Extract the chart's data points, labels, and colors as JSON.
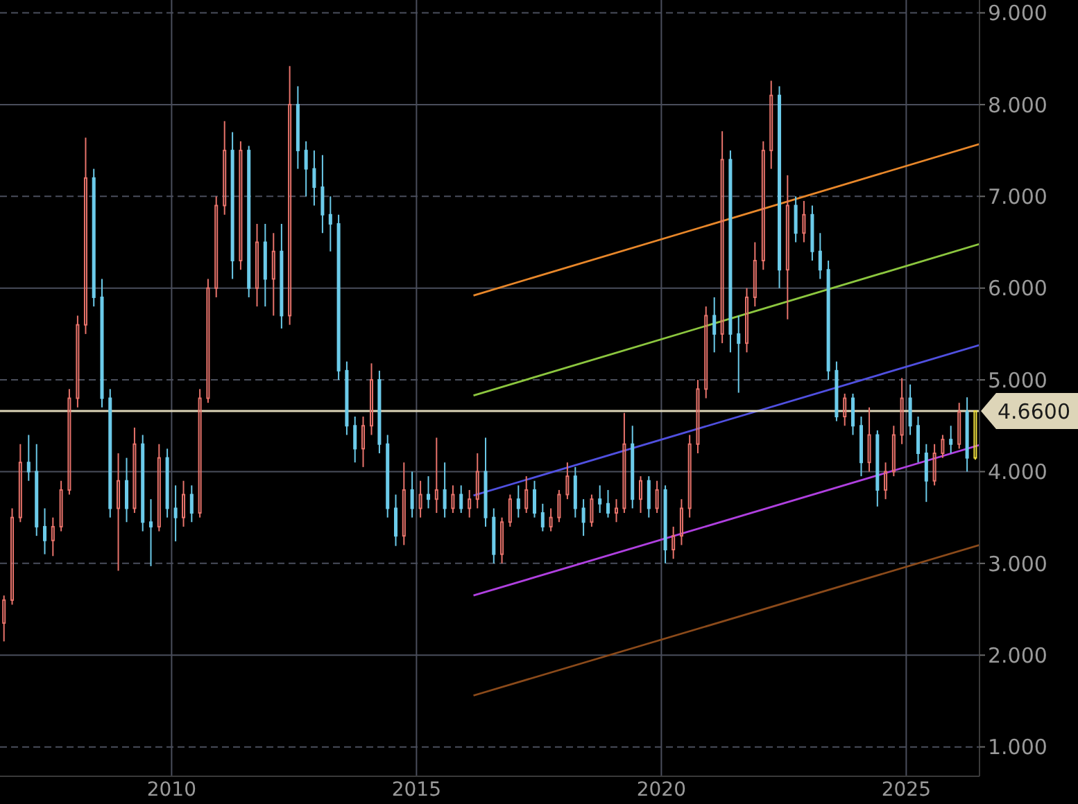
{
  "chart_data": {
    "type": "candlestick",
    "x": [
      "2006-08",
      "2006-10",
      "2006-12",
      "2007-02",
      "2007-04",
      "2007-06",
      "2007-08",
      "2007-10",
      "2007-12",
      "2008-02",
      "2008-04",
      "2008-06",
      "2008-08",
      "2008-10",
      "2008-12",
      "2009-02",
      "2009-04",
      "2009-06",
      "2009-08",
      "2009-10",
      "2009-12",
      "2010-02",
      "2010-04",
      "2010-06",
      "2010-08",
      "2010-10",
      "2010-12",
      "2011-02",
      "2011-04",
      "2011-06",
      "2011-08",
      "2011-10",
      "2011-12",
      "2012-02",
      "2012-04",
      "2012-06",
      "2012-08",
      "2012-10",
      "2012-12",
      "2013-02",
      "2013-04",
      "2013-06",
      "2013-08",
      "2013-10",
      "2013-12",
      "2014-02",
      "2014-04",
      "2014-06",
      "2014-08",
      "2014-10",
      "2014-12",
      "2015-02",
      "2015-04",
      "2015-06",
      "2015-08",
      "2015-10",
      "2015-12",
      "2016-02",
      "2016-04",
      "2016-06",
      "2016-08",
      "2016-10",
      "2016-12",
      "2017-02",
      "2017-04",
      "2017-06",
      "2017-08",
      "2017-10",
      "2017-12",
      "2018-02",
      "2018-04",
      "2018-06",
      "2018-08",
      "2018-10",
      "2018-12",
      "2019-02",
      "2019-04",
      "2019-06",
      "2019-08",
      "2019-10",
      "2019-12",
      "2020-02",
      "2020-04",
      "2020-06",
      "2020-08",
      "2020-10",
      "2020-12",
      "2021-02",
      "2021-04",
      "2021-06",
      "2021-08",
      "2021-10",
      "2021-12",
      "2022-02",
      "2022-04",
      "2022-06",
      "2022-08",
      "2022-10",
      "2022-12",
      "2023-02",
      "2023-04",
      "2023-06",
      "2023-08",
      "2023-10",
      "2023-12",
      "2024-02",
      "2024-04",
      "2024-06",
      "2024-08",
      "2024-10",
      "2024-12",
      "2025-02",
      "2025-04",
      "2025-06",
      "2025-08",
      "2025-10",
      "2025-12",
      "2026-02",
      "2026-04",
      "2026-06"
    ],
    "ohlc": [
      [
        2.35,
        2.65,
        2.15,
        2.6
      ],
      [
        2.6,
        3.6,
        2.55,
        3.5
      ],
      [
        3.5,
        4.3,
        3.45,
        4.1
      ],
      [
        4.1,
        4.4,
        3.9,
        4.0
      ],
      [
        4.0,
        4.3,
        3.3,
        3.4
      ],
      [
        3.4,
        3.6,
        3.1,
        3.25
      ],
      [
        3.25,
        3.5,
        3.08,
        3.4
      ],
      [
        3.4,
        3.9,
        3.35,
        3.8
      ],
      [
        3.8,
        4.9,
        3.75,
        4.8
      ],
      [
        4.8,
        5.7,
        4.7,
        5.6
      ],
      [
        5.6,
        7.64,
        5.5,
        7.2
      ],
      [
        7.2,
        7.3,
        5.8,
        5.9
      ],
      [
        5.9,
        6.1,
        4.7,
        4.8
      ],
      [
        4.8,
        4.9,
        3.5,
        3.6
      ],
      [
        3.6,
        4.2,
        2.92,
        3.9
      ],
      [
        3.9,
        4.15,
        3.45,
        3.6
      ],
      [
        3.6,
        4.48,
        3.55,
        4.3
      ],
      [
        4.3,
        4.4,
        3.35,
        3.45
      ],
      [
        3.45,
        3.7,
        2.97,
        3.4
      ],
      [
        3.4,
        4.3,
        3.35,
        4.15
      ],
      [
        4.15,
        4.25,
        3.5,
        3.6
      ],
      [
        3.6,
        3.85,
        3.24,
        3.5
      ],
      [
        3.5,
        3.9,
        3.4,
        3.75
      ],
      [
        3.75,
        3.85,
        3.45,
        3.55
      ],
      [
        3.55,
        4.9,
        3.5,
        4.8
      ],
      [
        4.8,
        6.1,
        4.75,
        6.0
      ],
      [
        6.0,
        7.0,
        5.9,
        6.9
      ],
      [
        6.9,
        7.82,
        6.8,
        7.5
      ],
      [
        7.5,
        7.7,
        6.1,
        6.3
      ],
      [
        6.3,
        7.6,
        6.2,
        7.5
      ],
      [
        7.5,
        7.55,
        5.9,
        6.0
      ],
      [
        6.0,
        6.7,
        5.8,
        6.5
      ],
      [
        6.5,
        6.7,
        5.8,
        6.1
      ],
      [
        6.1,
        6.6,
        5.7,
        6.4
      ],
      [
        6.4,
        6.7,
        5.56,
        5.7
      ],
      [
        5.7,
        8.42,
        5.6,
        8.0
      ],
      [
        8.0,
        8.2,
        7.3,
        7.5
      ],
      [
        7.5,
        7.6,
        7.0,
        7.3
      ],
      [
        7.3,
        7.5,
        6.9,
        7.1
      ],
      [
        7.1,
        7.45,
        6.6,
        6.8
      ],
      [
        6.8,
        7.0,
        6.4,
        6.7
      ],
      [
        6.7,
        6.8,
        5.0,
        5.1
      ],
      [
        5.1,
        5.2,
        4.4,
        4.5
      ],
      [
        4.5,
        4.6,
        4.1,
        4.25
      ],
      [
        4.25,
        4.6,
        4.05,
        4.5
      ],
      [
        4.5,
        5.18,
        4.4,
        5.0
      ],
      [
        5.0,
        5.1,
        4.2,
        4.3
      ],
      [
        4.3,
        4.4,
        3.5,
        3.6
      ],
      [
        3.6,
        3.75,
        3.19,
        3.3
      ],
      [
        3.3,
        4.1,
        3.2,
        3.8
      ],
      [
        3.8,
        4.0,
        3.5,
        3.6
      ],
      [
        3.6,
        3.9,
        3.5,
        3.75
      ],
      [
        3.75,
        3.95,
        3.6,
        3.7
      ],
      [
        3.7,
        4.37,
        3.55,
        3.8
      ],
      [
        3.8,
        4.1,
        3.5,
        3.6
      ],
      [
        3.6,
        3.85,
        3.55,
        3.75
      ],
      [
        3.75,
        3.85,
        3.55,
        3.6
      ],
      [
        3.6,
        3.8,
        3.5,
        3.7
      ],
      [
        3.7,
        4.2,
        3.6,
        4.0
      ],
      [
        4.0,
        4.37,
        3.4,
        3.5
      ],
      [
        3.5,
        3.6,
        3.0,
        3.1
      ],
      [
        3.1,
        3.5,
        3.0,
        3.45
      ],
      [
        3.45,
        3.75,
        3.4,
        3.7
      ],
      [
        3.7,
        3.85,
        3.5,
        3.6
      ],
      [
        3.6,
        3.95,
        3.55,
        3.8
      ],
      [
        3.8,
        3.9,
        3.5,
        3.55
      ],
      [
        3.55,
        3.65,
        3.35,
        3.4
      ],
      [
        3.4,
        3.6,
        3.35,
        3.5
      ],
      [
        3.5,
        3.8,
        3.45,
        3.75
      ],
      [
        3.75,
        4.1,
        3.7,
        3.95
      ],
      [
        3.95,
        4.05,
        3.5,
        3.6
      ],
      [
        3.6,
        3.7,
        3.3,
        3.45
      ],
      [
        3.45,
        3.75,
        3.4,
        3.7
      ],
      [
        3.7,
        3.85,
        3.55,
        3.65
      ],
      [
        3.65,
        3.8,
        3.5,
        3.55
      ],
      [
        3.55,
        3.7,
        3.45,
        3.6
      ],
      [
        3.6,
        4.64,
        3.55,
        4.3
      ],
      [
        4.3,
        4.5,
        3.6,
        3.7
      ],
      [
        3.7,
        3.95,
        3.55,
        3.9
      ],
      [
        3.9,
        3.95,
        3.5,
        3.6
      ],
      [
        3.6,
        3.9,
        3.55,
        3.8
      ],
      [
        3.8,
        3.85,
        3.0,
        3.15
      ],
      [
        3.15,
        3.4,
        3.05,
        3.3
      ],
      [
        3.3,
        3.7,
        3.2,
        3.6
      ],
      [
        3.6,
        4.4,
        3.5,
        4.3
      ],
      [
        4.3,
        5.0,
        4.2,
        4.9
      ],
      [
        4.9,
        5.8,
        4.8,
        5.7
      ],
      [
        5.7,
        5.9,
        5.3,
        5.5
      ],
      [
        5.5,
        7.71,
        5.4,
        7.4
      ],
      [
        7.4,
        7.5,
        5.3,
        5.5
      ],
      [
        5.5,
        5.7,
        4.86,
        5.4
      ],
      [
        5.4,
        6.0,
        5.3,
        5.9
      ],
      [
        5.9,
        6.5,
        5.8,
        6.3
      ],
      [
        6.3,
        7.6,
        6.2,
        7.5
      ],
      [
        7.5,
        8.26,
        7.3,
        8.1
      ],
      [
        8.1,
        8.2,
        6.0,
        6.2
      ],
      [
        6.2,
        7.23,
        5.66,
        6.9
      ],
      [
        6.9,
        7.0,
        6.5,
        6.6
      ],
      [
        6.6,
        6.95,
        6.5,
        6.8
      ],
      [
        6.8,
        6.9,
        6.3,
        6.4
      ],
      [
        6.4,
        6.6,
        6.1,
        6.2
      ],
      [
        6.2,
        6.3,
        5.0,
        5.1
      ],
      [
        5.1,
        5.2,
        4.55,
        4.6
      ],
      [
        4.6,
        4.85,
        4.5,
        4.8
      ],
      [
        4.8,
        4.85,
        4.4,
        4.5
      ],
      [
        4.5,
        4.6,
        3.95,
        4.1
      ],
      [
        4.1,
        4.7,
        4.0,
        4.4
      ],
      [
        4.4,
        4.45,
        3.62,
        3.8
      ],
      [
        3.8,
        4.1,
        3.7,
        4.0
      ],
      [
        4.0,
        4.5,
        3.95,
        4.4
      ],
      [
        4.4,
        5.02,
        4.3,
        4.8
      ],
      [
        4.8,
        4.95,
        4.4,
        4.5
      ],
      [
        4.5,
        4.6,
        4.1,
        4.2
      ],
      [
        4.2,
        4.3,
        3.67,
        3.9
      ],
      [
        3.9,
        4.3,
        3.85,
        4.2
      ],
      [
        4.2,
        4.4,
        4.15,
        4.35
      ],
      [
        4.35,
        4.5,
        4.2,
        4.3
      ],
      [
        4.3,
        4.75,
        4.25,
        4.65
      ],
      [
        4.65,
        4.81,
        4.0,
        4.15
      ],
      [
        4.15,
        4.66,
        4.13,
        4.66
      ]
    ],
    "colors": [
      "#e8736b",
      "#e8736b",
      "#e8736b",
      "#6ccbea",
      "#6ccbea",
      "#6ccbea",
      "#e8736b",
      "#e8736b",
      "#e8736b",
      "#e8736b",
      "#e8736b",
      "#6ccbea",
      "#6ccbea",
      "#6ccbea",
      "#e8736b",
      "#6ccbea",
      "#e8736b",
      "#6ccbea",
      "#6ccbea",
      "#e8736b",
      "#6ccbea",
      "#6ccbea",
      "#e8736b",
      "#6ccbea",
      "#e8736b",
      "#e8736b",
      "#e8736b",
      "#e8736b",
      "#6ccbea",
      "#e8736b",
      "#6ccbea",
      "#e8736b",
      "#6ccbea",
      "#e8736b",
      "#6ccbea",
      "#e8736b",
      "#6ccbea",
      "#6ccbea",
      "#6ccbea",
      "#6ccbea",
      "#6ccbea",
      "#6ccbea",
      "#6ccbea",
      "#6ccbea",
      "#e8736b",
      "#e8736b",
      "#6ccbea",
      "#6ccbea",
      "#6ccbea",
      "#e8736b",
      "#6ccbea",
      "#e8736b",
      "#6ccbea",
      "#e8736b",
      "#6ccbea",
      "#e8736b",
      "#6ccbea",
      "#e8736b",
      "#e8736b",
      "#6ccbea",
      "#6ccbea",
      "#e8736b",
      "#e8736b",
      "#6ccbea",
      "#e8736b",
      "#6ccbea",
      "#6ccbea",
      "#e8736b",
      "#e8736b",
      "#e8736b",
      "#6ccbea",
      "#6ccbea",
      "#e8736b",
      "#6ccbea",
      "#6ccbea",
      "#e8736b",
      "#e8736b",
      "#6ccbea",
      "#e8736b",
      "#6ccbea",
      "#e8736b",
      "#6ccbea",
      "#e8736b",
      "#e8736b",
      "#e8736b",
      "#e8736b",
      "#e8736b",
      "#6ccbea",
      "#e8736b",
      "#6ccbea",
      "#6ccbea",
      "#e8736b",
      "#e8736b",
      "#e8736b",
      "#e8736b",
      "#6ccbea",
      "#e8736b",
      "#6ccbea",
      "#e8736b",
      "#6ccbea",
      "#6ccbea",
      "#6ccbea",
      "#6ccbea",
      "#e8736b",
      "#6ccbea",
      "#6ccbea",
      "#e8736b",
      "#6ccbea",
      "#e8736b",
      "#e8736b",
      "#e8736b",
      "#6ccbea",
      "#6ccbea",
      "#6ccbea",
      "#e8736b",
      "#e8736b",
      "#6ccbea",
      "#e8736b",
      "#6ccbea",
      "#f0e040"
    ],
    "series": [
      {
        "type": "line",
        "color": "#e8872a",
        "x": [
          "2016-03",
          "2026-07"
        ],
        "values": [
          5.92,
          7.57
        ]
      },
      {
        "type": "line",
        "color": "#8cc63f",
        "x": [
          "2016-03",
          "2026-07"
        ],
        "values": [
          4.83,
          6.48
        ]
      },
      {
        "type": "line",
        "color": "#5050e0",
        "x": [
          "2016-03",
          "2026-07"
        ],
        "values": [
          3.74,
          5.38
        ]
      },
      {
        "type": "line",
        "color": "#b040e0",
        "x": [
          "2016-03",
          "2026-07"
        ],
        "values": [
          2.65,
          4.29
        ]
      },
      {
        "type": "line",
        "color": "#8b4a1a",
        "x": [
          "2016-03",
          "2026-07"
        ],
        "values": [
          1.56,
          3.2
        ]
      }
    ],
    "xlim": [
      "2006-07",
      "2026-07"
    ],
    "xticks": [
      "2010",
      "2015",
      "2020",
      "2025"
    ],
    "ylim": [
      0.68,
      9.14
    ],
    "yticks": [
      {
        "value": 1,
        "label": "1.000"
      },
      {
        "value": 2,
        "label": "2.000"
      },
      {
        "value": 3,
        "label": "3.000"
      },
      {
        "value": 4,
        "label": "4.000"
      },
      {
        "value": 5,
        "label": "5.000"
      },
      {
        "value": 6,
        "label": "6.000"
      },
      {
        "value": 7,
        "label": "7.000"
      },
      {
        "value": 8,
        "label": "8.000"
      },
      {
        "value": 9,
        "label": "9.000"
      }
    ],
    "grid": true,
    "ref_lines": [
      {
        "axis": "y",
        "value": 4.66,
        "label": "4.6600",
        "color": "#ddd5b8"
      }
    ]
  }
}
